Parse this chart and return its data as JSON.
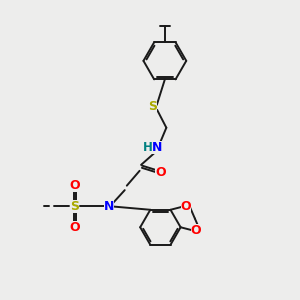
{
  "bg_color": "#ededec",
  "bond_color": "#1a1a1a",
  "bond_width": 1.4,
  "atom_colors": {
    "N": "#0000ff",
    "O": "#ff0000",
    "S_thio": "#aaaa00",
    "S_sulfonyl": "#aaaa00",
    "H": "#008080",
    "C": "#1a1a1a"
  },
  "font_size": 8.5
}
